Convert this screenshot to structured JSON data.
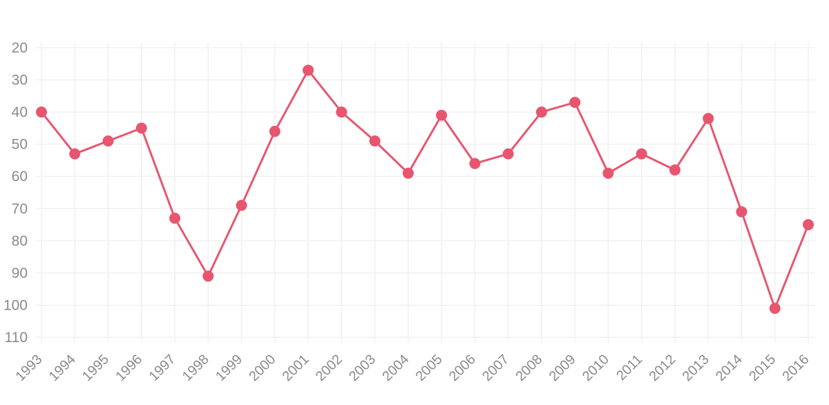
{
  "chart_data": {
    "type": "line",
    "title": "",
    "xlabel": "",
    "ylabel": "",
    "y_axis_reversed": true,
    "ylim": [
      20,
      110
    ],
    "y_ticks": [
      "20",
      "30",
      "40",
      "50",
      "60",
      "70",
      "80",
      "90",
      "100",
      "110"
    ],
    "grid": true,
    "legend": "none",
    "categories": [
      "1993",
      "1994",
      "1995",
      "1996",
      "1997",
      "1998",
      "1999",
      "2000",
      "2001",
      "2002",
      "2003",
      "2004",
      "2005",
      "2006",
      "2007",
      "2008",
      "2009",
      "2010",
      "2011",
      "2012",
      "2013",
      "2014",
      "2015",
      "2016"
    ],
    "series": [
      {
        "color": "#e8556f",
        "values": [
          40,
          53,
          49,
          45,
          73,
          91,
          69,
          46,
          27,
          40,
          49,
          59,
          41,
          56,
          53,
          40,
          37,
          59,
          53,
          58,
          42,
          71,
          101,
          75
        ]
      }
    ]
  }
}
